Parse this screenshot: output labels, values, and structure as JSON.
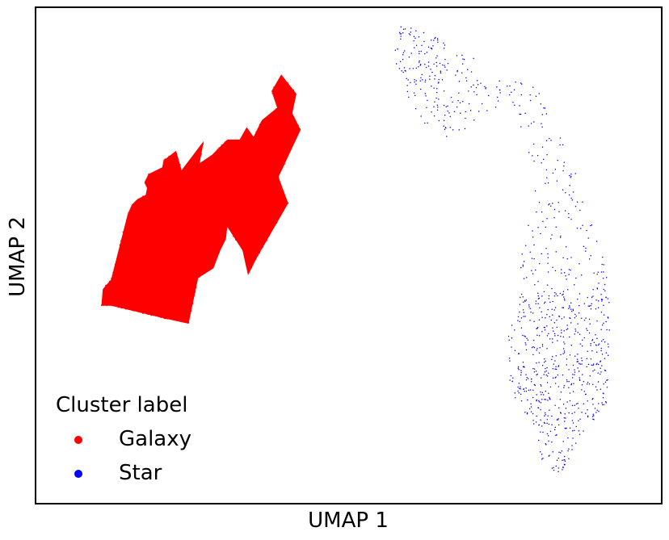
{
  "chart_data": {
    "type": "scatter",
    "xlabel": "UMAP 1",
    "ylabel": "UMAP 2",
    "show_ticks": false,
    "grid": false,
    "legend": {
      "title": "Cluster label",
      "placement": "lower-left"
    },
    "series": [
      {
        "name": "Galaxy",
        "color": "#ff0000",
        "marker": "dot",
        "approx_point_count": 9000,
        "outline": [
          [
            3.1,
            8.3
          ],
          [
            3.7,
            9.0
          ],
          [
            4.9,
            13.7
          ],
          [
            5.2,
            14.4
          ],
          [
            5.6,
            14.8
          ],
          [
            6.2,
            15.1
          ],
          [
            6.3,
            15.6
          ],
          [
            6.1,
            16.0
          ],
          [
            6.4,
            16.6
          ],
          [
            7.4,
            17.1
          ],
          [
            7.5,
            17.6
          ],
          [
            8.4,
            18.3
          ],
          [
            8.8,
            16.9
          ],
          [
            10.4,
            19.0
          ],
          [
            10.1,
            17.4
          ],
          [
            11.0,
            18.0
          ],
          [
            12.1,
            19.1
          ],
          [
            13.0,
            19.1
          ],
          [
            13.5,
            20.0
          ],
          [
            14.0,
            19.3
          ],
          [
            14.6,
            20.5
          ],
          [
            15.7,
            21.4
          ],
          [
            15.3,
            22.6
          ],
          [
            16.0,
            23.8
          ],
          [
            17.1,
            22.4
          ],
          [
            16.8,
            21.0
          ],
          [
            17.4,
            19.8
          ],
          [
            15.8,
            16.4
          ],
          [
            16.5,
            14.5
          ],
          [
            14.2,
            10.5
          ],
          [
            13.6,
            9.3
          ],
          [
            13.2,
            11.1
          ],
          [
            12.1,
            12.8
          ],
          [
            12.0,
            11.9
          ],
          [
            11.6,
            11.1
          ],
          [
            11.1,
            9.8
          ],
          [
            10.0,
            9.1
          ],
          [
            9.3,
            5.8
          ],
          [
            7.5,
            6.2
          ],
          [
            3.7,
            7.1
          ],
          [
            3.0,
            7.1
          ]
        ]
      },
      {
        "name": "Star",
        "color": "#0000ff",
        "marker": "dot",
        "approx_point_count": 6000,
        "outline": [
          [
            24.9,
            27.5
          ],
          [
            25.8,
            27.0
          ],
          [
            26.8,
            26.7
          ],
          [
            28.0,
            26.0
          ],
          [
            29.0,
            25.5
          ],
          [
            30.8,
            24.7
          ],
          [
            32.4,
            23.8
          ],
          [
            33.8,
            23.1
          ],
          [
            34.7,
            22.9
          ],
          [
            35.1,
            21.6
          ],
          [
            35.6,
            20.3
          ],
          [
            36.1,
            19.6
          ],
          [
            37.0,
            17.6
          ],
          [
            38.3,
            13.3
          ],
          [
            38.8,
            12.2
          ],
          [
            39.5,
            9.8
          ],
          [
            39.8,
            7.2
          ],
          [
            39.8,
            4.8
          ],
          [
            39.5,
            0.1
          ],
          [
            38.5,
            -1.4
          ],
          [
            36.6,
            -4.4
          ],
          [
            35.9,
            -5.4
          ],
          [
            34.9,
            -4.3
          ],
          [
            34.3,
            -1.5
          ],
          [
            33.0,
            0.2
          ],
          [
            32.5,
            1.7
          ],
          [
            32.4,
            5.3
          ],
          [
            33.1,
            6.3
          ],
          [
            33.2,
            7.8
          ],
          [
            33.3,
            12.8
          ],
          [
            34.5,
            16.2
          ],
          [
            33.6,
            18.9
          ],
          [
            32.8,
            20.5
          ],
          [
            31.6,
            21.5
          ],
          [
            30.4,
            20.6
          ],
          [
            29.0,
            19.3
          ],
          [
            27.4,
            19.2
          ],
          [
            25.9,
            20.8
          ],
          [
            25.1,
            22.3
          ],
          [
            24.4,
            24.2
          ],
          [
            24.1,
            25.3
          ],
          [
            24.6,
            27.8
          ]
        ]
      }
    ]
  }
}
